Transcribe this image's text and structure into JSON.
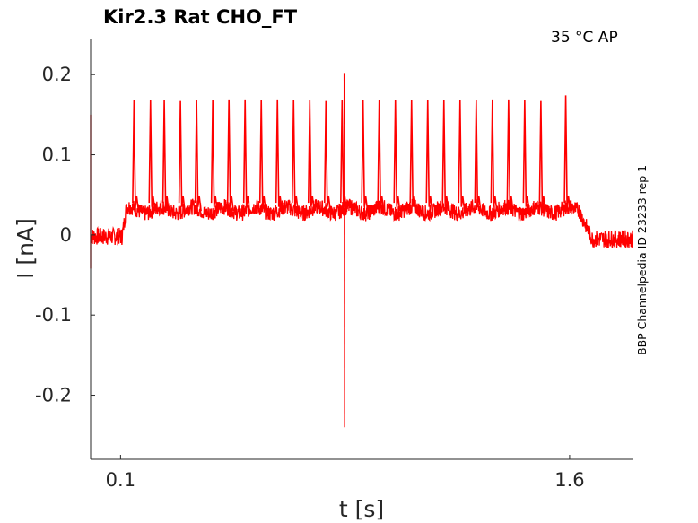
{
  "chart_data": {
    "type": "line",
    "title": "Kir2.3  Rat  CHO_FT",
    "condition_label": "35 °C  AP",
    "side_label": "BBP Channelpedia ID 23233 rep 1",
    "xlabel": "t [s]",
    "ylabel": "I [nA]",
    "xlim": [
      0.0,
      1.81
    ],
    "ylim": [
      -0.28,
      0.245
    ],
    "x_ticks": [
      {
        "value": 0.1,
        "label": "0.1"
      },
      {
        "value": 1.6,
        "label": "1.6"
      }
    ],
    "y_ticks": [
      {
        "value": 0.2,
        "label": "0.2"
      },
      {
        "value": 0.1,
        "label": "0.1"
      },
      {
        "value": 0,
        "label": "0"
      },
      {
        "value": -0.1,
        "label": "-0.1"
      },
      {
        "value": -0.2,
        "label": "-0.2"
      }
    ],
    "grid": false,
    "series_color": "#ff0000",
    "series": [
      {
        "values_description_points": [
          [
            0.0,
            -0.04
          ],
          [
            0.0,
            0.15
          ],
          [
            0.005,
            0.0
          ],
          [
            0.03,
            -0.01
          ],
          [
            0.06,
            0.005
          ],
          [
            0.1,
            -0.005
          ],
          [
            0.11,
            0.035
          ],
          [
            0.14,
            0.03
          ],
          [
            0.145,
            0.17
          ],
          [
            0.15,
            0.03
          ],
          [
            0.2,
            0.032
          ],
          [
            0.225,
            0.168
          ],
          [
            0.23,
            0.03
          ],
          [
            0.28,
            0.033
          ],
          [
            0.33,
            0.168
          ],
          [
            0.39,
            0.035
          ],
          [
            0.445,
            0.17
          ],
          [
            0.5,
            0.036
          ],
          [
            0.56,
            0.17
          ],
          [
            0.62,
            0.035
          ],
          [
            0.67,
            0.17
          ],
          [
            0.75,
            0.034
          ],
          [
            0.847,
            0.202
          ],
          [
            0.847,
            -0.24
          ],
          [
            0.85,
            0.035
          ],
          [
            0.9,
            0.168
          ],
          [
            1.0,
            0.036
          ],
          [
            1.07,
            0.17
          ],
          [
            1.18,
            0.034
          ],
          [
            1.24,
            0.17
          ],
          [
            1.35,
            0.035
          ],
          [
            1.42,
            0.17
          ],
          [
            1.53,
            0.034
          ],
          [
            1.587,
            0.174
          ],
          [
            1.6,
            0.035
          ],
          [
            1.63,
            0.025
          ],
          [
            1.65,
            0.005
          ],
          [
            1.7,
            -0.005
          ],
          [
            1.75,
            -0.01
          ],
          [
            1.81,
            0.0
          ]
        ]
      }
    ],
    "spikes_t": [
      0.145,
      0.2,
      0.246,
      0.3,
      0.354,
      0.408,
      0.462,
      0.516,
      0.57,
      0.624,
      0.678,
      0.732,
      0.786,
      0.84,
      0.91,
      0.964,
      1.018,
      1.072,
      1.126,
      1.18,
      1.234,
      1.288,
      1.342,
      1.396,
      1.45,
      1.504,
      1.587
    ],
    "spikes_peak": [
      0.168,
      0.168,
      0.168,
      0.167,
      0.168,
      0.168,
      0.169,
      0.169,
      0.168,
      0.169,
      0.168,
      0.168,
      0.167,
      0.168,
      0.168,
      0.168,
      0.168,
      0.168,
      0.168,
      0.168,
      0.168,
      0.168,
      0.169,
      0.169,
      0.168,
      0.167,
      0.174
    ],
    "artifact": {
      "t": 0.847,
      "max": 0.202,
      "min": -0.24
    },
    "baseline": {
      "pre_step": -0.002,
      "step_level": 0.035,
      "post_step": -0.005,
      "step_on": 0.105,
      "step_off": 1.625
    }
  }
}
